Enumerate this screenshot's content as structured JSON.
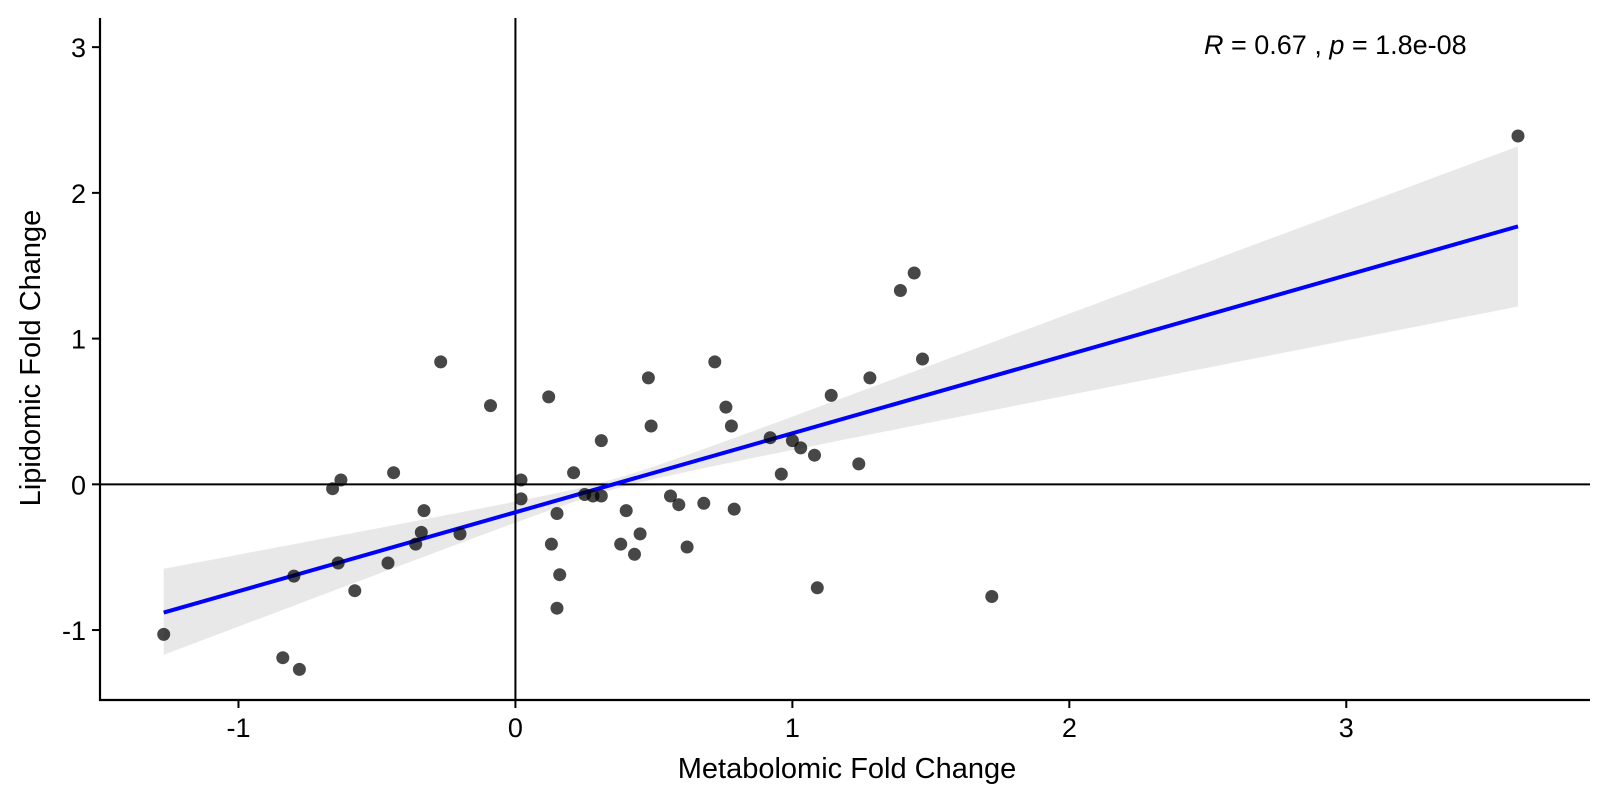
{
  "chart_data": {
    "type": "scatter",
    "title": "",
    "xlabel": "Metabolomic Fold Change",
    "ylabel": "Lipidomic Fold Change",
    "xlim": [
      -1.5,
      3.88
    ],
    "ylim": [
      -1.48,
      3.2
    ],
    "xticks": [
      "-1",
      "0",
      "1",
      "2",
      "3"
    ],
    "yticks": [
      "-1",
      "0",
      "1",
      "2",
      "3"
    ],
    "xtick_values": [
      -1,
      0,
      1,
      2,
      3
    ],
    "ytick_values": [
      -1,
      0,
      1,
      2,
      3
    ],
    "reference_lines": {
      "x": 0,
      "y": 0
    },
    "grid": false,
    "legend": "none",
    "annotation": {
      "r_label": "R",
      "r_text": " = 0.67 , ",
      "p_label": "p",
      "p_text": " = 1.8e-08"
    },
    "regression": {
      "x_range": [
        -1.27,
        3.62
      ],
      "y_start": -0.88,
      "y_end": 1.77,
      "ci_lower": [
        -1.17,
        1.22
      ],
      "ci_upper": [
        -0.58,
        2.32
      ],
      "ci_pivot_x": 0.35,
      "line_color": "#0000ff",
      "band_color": "#e8e8e8"
    },
    "point_color": "#000000",
    "points": [
      {
        "x": -1.27,
        "y": -1.03
      },
      {
        "x": -0.84,
        "y": -1.19
      },
      {
        "x": -0.78,
        "y": -1.27
      },
      {
        "x": -0.8,
        "y": -0.63
      },
      {
        "x": -0.66,
        "y": -0.03
      },
      {
        "x": -0.63,
        "y": 0.03
      },
      {
        "x": -0.64,
        "y": -0.54
      },
      {
        "x": -0.58,
        "y": -0.73
      },
      {
        "x": -0.46,
        "y": -0.54
      },
      {
        "x": -0.44,
        "y": 0.08
      },
      {
        "x": -0.36,
        "y": -0.41
      },
      {
        "x": -0.34,
        "y": -0.33
      },
      {
        "x": -0.33,
        "y": -0.18
      },
      {
        "x": -0.27,
        "y": 0.84
      },
      {
        "x": -0.2,
        "y": -0.34
      },
      {
        "x": -0.09,
        "y": 0.54
      },
      {
        "x": 0.02,
        "y": 0.03
      },
      {
        "x": 0.02,
        "y": -0.1
      },
      {
        "x": 0.12,
        "y": 0.6
      },
      {
        "x": 0.13,
        "y": -0.41
      },
      {
        "x": 0.15,
        "y": -0.2
      },
      {
        "x": 0.16,
        "y": -0.62
      },
      {
        "x": 0.15,
        "y": -0.85
      },
      {
        "x": 0.21,
        "y": 0.08
      },
      {
        "x": 0.25,
        "y": -0.07
      },
      {
        "x": 0.28,
        "y": -0.08
      },
      {
        "x": 0.31,
        "y": -0.08
      },
      {
        "x": 0.31,
        "y": 0.3
      },
      {
        "x": 0.38,
        "y": -0.41
      },
      {
        "x": 0.4,
        "y": -0.18
      },
      {
        "x": 0.43,
        "y": -0.48
      },
      {
        "x": 0.45,
        "y": -0.34
      },
      {
        "x": 0.48,
        "y": 0.73
      },
      {
        "x": 0.49,
        "y": 0.4
      },
      {
        "x": 0.56,
        "y": -0.08
      },
      {
        "x": 0.59,
        "y": -0.14
      },
      {
        "x": 0.62,
        "y": -0.43
      },
      {
        "x": 0.68,
        "y": -0.13
      },
      {
        "x": 0.72,
        "y": 0.84
      },
      {
        "x": 0.76,
        "y": 0.53
      },
      {
        "x": 0.78,
        "y": 0.4
      },
      {
        "x": 0.79,
        "y": -0.17
      },
      {
        "x": 0.92,
        "y": 0.32
      },
      {
        "x": 0.96,
        "y": 0.07
      },
      {
        "x": 1.0,
        "y": 0.3
      },
      {
        "x": 1.03,
        "y": 0.25
      },
      {
        "x": 1.08,
        "y": 0.2
      },
      {
        "x": 1.09,
        "y": -0.71
      },
      {
        "x": 1.14,
        "y": 0.61
      },
      {
        "x": 1.24,
        "y": 0.14
      },
      {
        "x": 1.28,
        "y": 0.73
      },
      {
        "x": 1.39,
        "y": 1.33
      },
      {
        "x": 1.44,
        "y": 1.45
      },
      {
        "x": 1.47,
        "y": 0.86
      },
      {
        "x": 1.72,
        "y": -0.77
      },
      {
        "x": 3.62,
        "y": 2.39
      }
    ]
  }
}
